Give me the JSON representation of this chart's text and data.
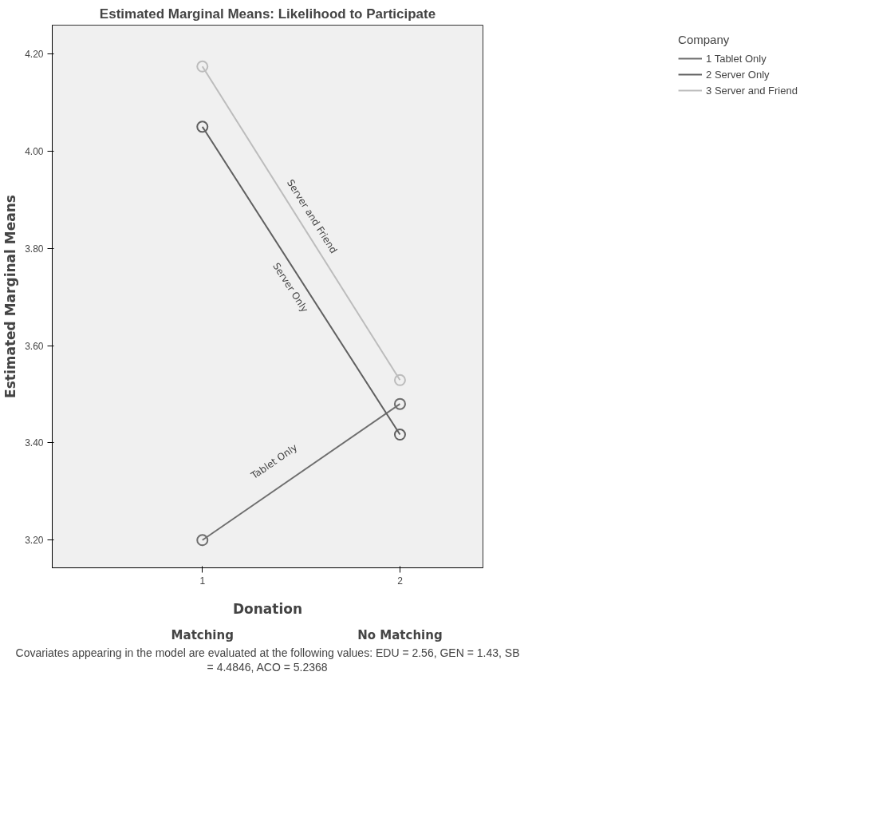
{
  "chart_data": {
    "type": "line",
    "title": "Estimated Marginal Means: Likelihood to Participate",
    "xlabel": "Donation",
    "ylabel": "Estimated Marginal Means",
    "legend_title": "Company",
    "x": [
      1,
      2
    ],
    "series": [
      {
        "name": "1 Tablet Only",
        "color": "#6e6e6e",
        "values": [
          3.2,
          3.48
        ]
      },
      {
        "name": "2 Server Only",
        "color": "#606060",
        "values": [
          4.05,
          3.417
        ]
      },
      {
        "name": "3 Server and Friend",
        "color": "#bcbcbc",
        "values": [
          4.174,
          3.529
        ]
      }
    ],
    "xlim": [
      0.24,
      2.42
    ],
    "ylim": [
      3.143,
      4.259
    ],
    "xticks": [
      1,
      2
    ],
    "yticks": [
      {
        "value": 3.2,
        "label": "3.20"
      },
      {
        "value": 3.4,
        "label": "3.40"
      },
      {
        "value": 3.6,
        "label": "3.60"
      },
      {
        "value": 3.8,
        "label": "3.80"
      },
      {
        "value": 4.0,
        "label": "4.00"
      },
      {
        "value": 4.2,
        "label": "4.20"
      }
    ],
    "marker": "circle",
    "line_style": "solid",
    "grid": false,
    "legend": "right",
    "annotations": [
      "Tablet Only",
      "Server Only",
      "Server and Friend",
      "Matching",
      "No Matching",
      "Covariates appearing in the model are evaluated at the following values: EDU = 2.56, GEN = 1.43, SB = 4.4846, ACO = 5.2368"
    ]
  }
}
